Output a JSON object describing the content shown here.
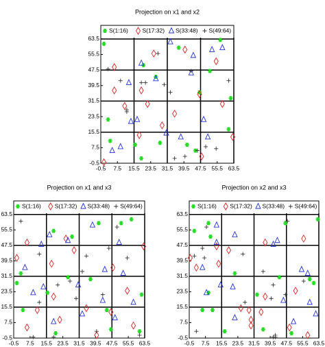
{
  "chart_data": [
    {
      "type": "scatter",
      "title": "Projection on x1 and x2",
      "xlim": [
        -0.5,
        63.5
      ],
      "ylim": [
        -0.5,
        70.5
      ],
      "xticks": [
        -0.5,
        7.5,
        15.5,
        23.5,
        31.5,
        39.5,
        47.5,
        55.5,
        63.5
      ],
      "yticks": [
        -0.5,
        7.5,
        15.5,
        23.5,
        31.5,
        39.5,
        47.5,
        55.5,
        63.5
      ],
      "block_lines": [
        15.5,
        31.5,
        47.5,
        63.5
      ],
      "legend": "north",
      "series": [
        {
          "name": "S(1:16)",
          "color": "#22dd22",
          "marker": "star",
          "x": [
            1,
            3,
            4,
            16,
            19,
            20,
            26,
            28,
            37,
            41,
            45,
            47,
            52,
            57,
            61,
            62
          ],
          "values": [
            61,
            22,
            11,
            9,
            2,
            50,
            44,
            10,
            59,
            9,
            6,
            36,
            47,
            63,
            17,
            33
          ]
        },
        {
          "name": "S(17:32)",
          "color": "#dd2222",
          "marker": "diamond",
          "x": [
            1,
            6,
            6,
            11,
            18,
            19,
            22,
            25,
            29,
            35,
            40,
            47,
            48,
            55,
            58,
            63
          ],
          "values": [
            0,
            49,
            37,
            29,
            14,
            37,
            30,
            56,
            19,
            25,
            58,
            35,
            3,
            52,
            30,
            13
          ]
        },
        {
          "name": "S(33:48)",
          "color": "#2233dd",
          "marker": "triangle",
          "x": [
            5,
            9,
            13,
            14,
            17,
            19,
            26,
            31,
            33,
            38,
            43,
            44,
            49,
            51,
            53,
            58
          ],
          "values": [
            6,
            8,
            41,
            21,
            22,
            51,
            43,
            15,
            62,
            13,
            46,
            55,
            22,
            13,
            58,
            59
          ]
        },
        {
          "name": "S(49:64)",
          "color": "#333333",
          "marker": "plus",
          "x": [
            3,
            9,
            12,
            12,
            19,
            21,
            27,
            30,
            33,
            35,
            40,
            43,
            46,
            50,
            55,
            61
          ],
          "values": [
            48,
            42,
            26,
            27,
            41,
            41,
            56,
            40,
            36,
            2,
            3,
            47,
            6,
            8,
            7,
            42
          ]
        }
      ]
    },
    {
      "type": "scatter",
      "title": "Projection on x1 and x3",
      "xlim": [
        -0.5,
        63.5
      ],
      "ylim": [
        -0.5,
        70.5
      ],
      "xticks": [
        -0.5,
        7.5,
        15.5,
        23.5,
        31.5,
        39.5,
        47.5,
        55.5,
        63.5
      ],
      "yticks": [
        -0.5,
        7.5,
        15.5,
        23.5,
        31.5,
        39.5,
        47.5,
        55.5,
        63.5
      ],
      "block_lines": [
        15.5,
        31.5,
        47.5,
        63.5
      ],
      "legend": "north",
      "series": [
        {
          "name": "S(1:16)",
          "color": "#22dd22",
          "marker": "star",
          "x": [
            1,
            3,
            4,
            16,
            19,
            20,
            26,
            28,
            37,
            41,
            45,
            47,
            52,
            57,
            61,
            62
          ],
          "values": [
            28,
            33,
            14,
            23,
            55,
            2,
            31,
            52,
            30,
            59,
            14,
            4,
            59,
            61,
            3,
            22
          ]
        },
        {
          "name": "S(17:32)",
          "color": "#dd2222",
          "marker": "diamond",
          "x": [
            1,
            6,
            6,
            11,
            18,
            19,
            22,
            25,
            29,
            35,
            40,
            47,
            48,
            55,
            58,
            63
          ],
          "values": [
            41,
            5,
            49,
            14,
            38,
            21,
            9,
            51,
            45,
            15,
            1,
            13,
            36,
            24,
            6,
            47
          ]
        },
        {
          "name": "S(33:48)",
          "color": "#2233dd",
          "marker": "triangle",
          "x": [
            5,
            9,
            13,
            14,
            17,
            19,
            26,
            31,
            33,
            38,
            43,
            44,
            49,
            51,
            53,
            58
          ],
          "values": [
            36,
            23,
            48,
            26,
            53,
            8,
            50,
            27,
            12,
            58,
            19,
            35,
            10,
            49,
            33,
            18
          ]
        },
        {
          "name": "S(49:64)",
          "color": "#333333",
          "marker": "plus",
          "x": [
            3,
            9,
            12,
            12,
            19,
            21,
            27,
            30,
            33,
            35,
            40,
            43,
            46,
            50,
            55,
            61
          ],
          "values": [
            60,
            0,
            43,
            18,
            0,
            27,
            29,
            20,
            34,
            42,
            3,
            22,
            46,
            57,
            41,
            1
          ]
        }
      ]
    },
    {
      "type": "scatter",
      "title": "Projection on x2 and x3",
      "xlim": [
        -0.5,
        63.5
      ],
      "ylim": [
        -0.5,
        70.5
      ],
      "xticks": [
        -0.5,
        7.5,
        15.5,
        23.5,
        31.5,
        39.5,
        47.5,
        55.5,
        63.5
      ],
      "yticks": [
        -0.5,
        7.5,
        15.5,
        23.5,
        31.5,
        39.5,
        47.5,
        55.5,
        63.5
      ],
      "block_lines": [
        15.5,
        31.5,
        47.5,
        63.5
      ],
      "legend": "north",
      "series": [
        {
          "name": "S(1:16)",
          "color": "#22dd22",
          "marker": "star",
          "x": [
            61,
            22,
            11,
            9,
            2,
            50,
            44,
            10,
            59,
            9,
            6,
            36,
            47,
            63,
            17,
            33
          ],
          "values": [
            28,
            33,
            14,
            23,
            55,
            2,
            31,
            52,
            30,
            59,
            14,
            4,
            59,
            61,
            3,
            22
          ]
        },
        {
          "name": "S(17:32)",
          "color": "#dd2222",
          "marker": "diamond",
          "x": [
            0,
            49,
            37,
            29,
            14,
            37,
            30,
            56,
            19,
            25,
            58,
            35,
            3,
            52,
            30,
            13
          ],
          "values": [
            41,
            5,
            49,
            14,
            38,
            21,
            9,
            51,
            45,
            15,
            1,
            13,
            36,
            24,
            6,
            47
          ]
        },
        {
          "name": "S(33:48)",
          "color": "#2233dd",
          "marker": "triangle",
          "x": [
            6,
            8,
            41,
            21,
            22,
            51,
            43,
            15,
            62,
            13,
            46,
            55,
            22,
            13,
            58,
            59
          ],
          "values": [
            36,
            23,
            48,
            26,
            53,
            8,
            50,
            27,
            12,
            58,
            19,
            35,
            10,
            49,
            33,
            18
          ]
        },
        {
          "name": "S(49:64)",
          "color": "#333333",
          "marker": "plus",
          "x": [
            48,
            42,
            26,
            27,
            41,
            41,
            56,
            40,
            36,
            2,
            3,
            47,
            6,
            8,
            7,
            42
          ],
          "values": [
            60,
            0,
            43,
            18,
            0,
            27,
            29,
            20,
            34,
            42,
            3,
            22,
            46,
            57,
            41,
            1
          ]
        }
      ]
    }
  ]
}
